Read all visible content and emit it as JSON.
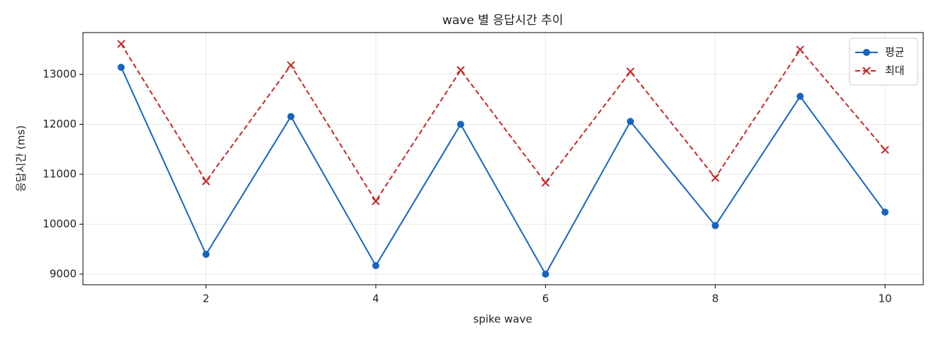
{
  "chart_data": {
    "type": "line",
    "title": "wave 별 응답시간 추이",
    "xlabel": "spike wave",
    "ylabel": "응답시간 (ms)",
    "x": [
      1,
      2,
      3,
      4,
      5,
      6,
      7,
      8,
      9,
      10
    ],
    "series": [
      {
        "name": "평균",
        "color": "#1565c0",
        "marker": "circle",
        "dash": "solid",
        "values": [
          13142,
          9397,
          12156,
          9170,
          12000,
          9000,
          12057,
          9972,
          12560,
          10241
        ]
      },
      {
        "name": "최대",
        "color": "#c62828",
        "marker": "x",
        "dash": "dashed",
        "values": [
          13610,
          10858,
          13184,
          10461,
          13085,
          10830,
          13057,
          10929,
          13496,
          11489
        ]
      }
    ],
    "xlim": [
      0.55,
      10.45
    ],
    "ylim": [
      8787,
      13837
    ],
    "xticks": [
      2,
      4,
      6,
      8,
      10
    ],
    "yticks": [
      9000,
      10000,
      11000,
      12000,
      13000
    ],
    "grid": true,
    "legend": "upper right"
  }
}
